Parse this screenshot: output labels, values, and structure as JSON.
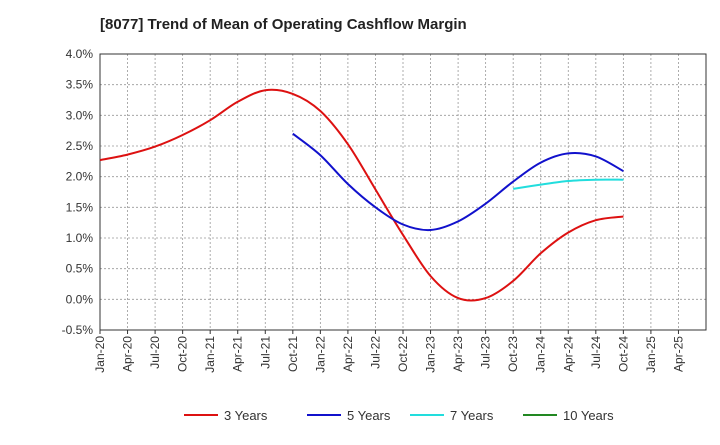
{
  "chart_data": {
    "type": "line",
    "title": "[8077]  Trend of Mean of Operating Cashflow Margin",
    "xlabel": "",
    "ylabel": "",
    "ylim": [
      -0.5,
      4.0
    ],
    "yticks": [
      "-0.5%",
      "0.0%",
      "0.5%",
      "1.0%",
      "1.5%",
      "2.0%",
      "2.5%",
      "3.0%",
      "3.5%",
      "4.0%"
    ],
    "ytick_values": [
      -0.5,
      0.0,
      0.5,
      1.0,
      1.5,
      2.0,
      2.5,
      3.0,
      3.5,
      4.0
    ],
    "xticks": [
      "Jan-20",
      "Apr-20",
      "Jul-20",
      "Oct-20",
      "Jan-21",
      "Apr-21",
      "Jul-21",
      "Oct-21",
      "Jan-22",
      "Apr-22",
      "Jul-22",
      "Oct-22",
      "Jan-23",
      "Apr-23",
      "Jul-23",
      "Oct-23",
      "Jan-24",
      "Apr-24",
      "Jul-24",
      "Oct-24",
      "Jan-25",
      "Apr-25"
    ],
    "grid": true,
    "legend_position": "bottom",
    "series": [
      {
        "name": "3 Years",
        "color": "#dd1111",
        "points": [
          [
            "Jan-20",
            2.27
          ],
          [
            "Apr-20",
            2.36
          ],
          [
            "Jul-20",
            2.49
          ],
          [
            "Oct-20",
            2.68
          ],
          [
            "Jan-21",
            2.92
          ],
          [
            "Apr-21",
            3.22
          ],
          [
            "Jul-21",
            3.41
          ],
          [
            "Oct-21",
            3.35
          ],
          [
            "Jan-22",
            3.07
          ],
          [
            "Apr-22",
            2.53
          ],
          [
            "Jul-22",
            1.79
          ],
          [
            "Oct-22",
            1.05
          ],
          [
            "Jan-23",
            0.38
          ],
          [
            "Apr-23",
            0.02
          ],
          [
            "Jul-23",
            0.02
          ],
          [
            "Oct-23",
            0.3
          ],
          [
            "Jan-24",
            0.75
          ],
          [
            "Apr-24",
            1.09
          ],
          [
            "Jul-24",
            1.29
          ],
          [
            "Oct-24",
            1.35
          ]
        ]
      },
      {
        "name": "5 Years",
        "color": "#1111cc",
        "points": [
          [
            "Oct-21",
            2.7
          ],
          [
            "Jan-22",
            2.35
          ],
          [
            "Apr-22",
            1.88
          ],
          [
            "Jul-22",
            1.5
          ],
          [
            "Oct-22",
            1.22
          ],
          [
            "Jan-23",
            1.13
          ],
          [
            "Apr-23",
            1.27
          ],
          [
            "Jul-23",
            1.56
          ],
          [
            "Oct-23",
            1.92
          ],
          [
            "Jan-24",
            2.23
          ],
          [
            "Apr-24",
            2.38
          ],
          [
            "Jul-24",
            2.33
          ],
          [
            "Oct-24",
            2.09
          ]
        ]
      },
      {
        "name": "7 Years",
        "color": "#22dddd",
        "points": [
          [
            "Oct-23",
            1.8
          ],
          [
            "Jan-24",
            1.87
          ],
          [
            "Apr-24",
            1.93
          ],
          [
            "Jul-24",
            1.95
          ],
          [
            "Oct-24",
            1.95
          ]
        ]
      },
      {
        "name": "10 Years",
        "color": "#228822",
        "points": []
      }
    ]
  }
}
